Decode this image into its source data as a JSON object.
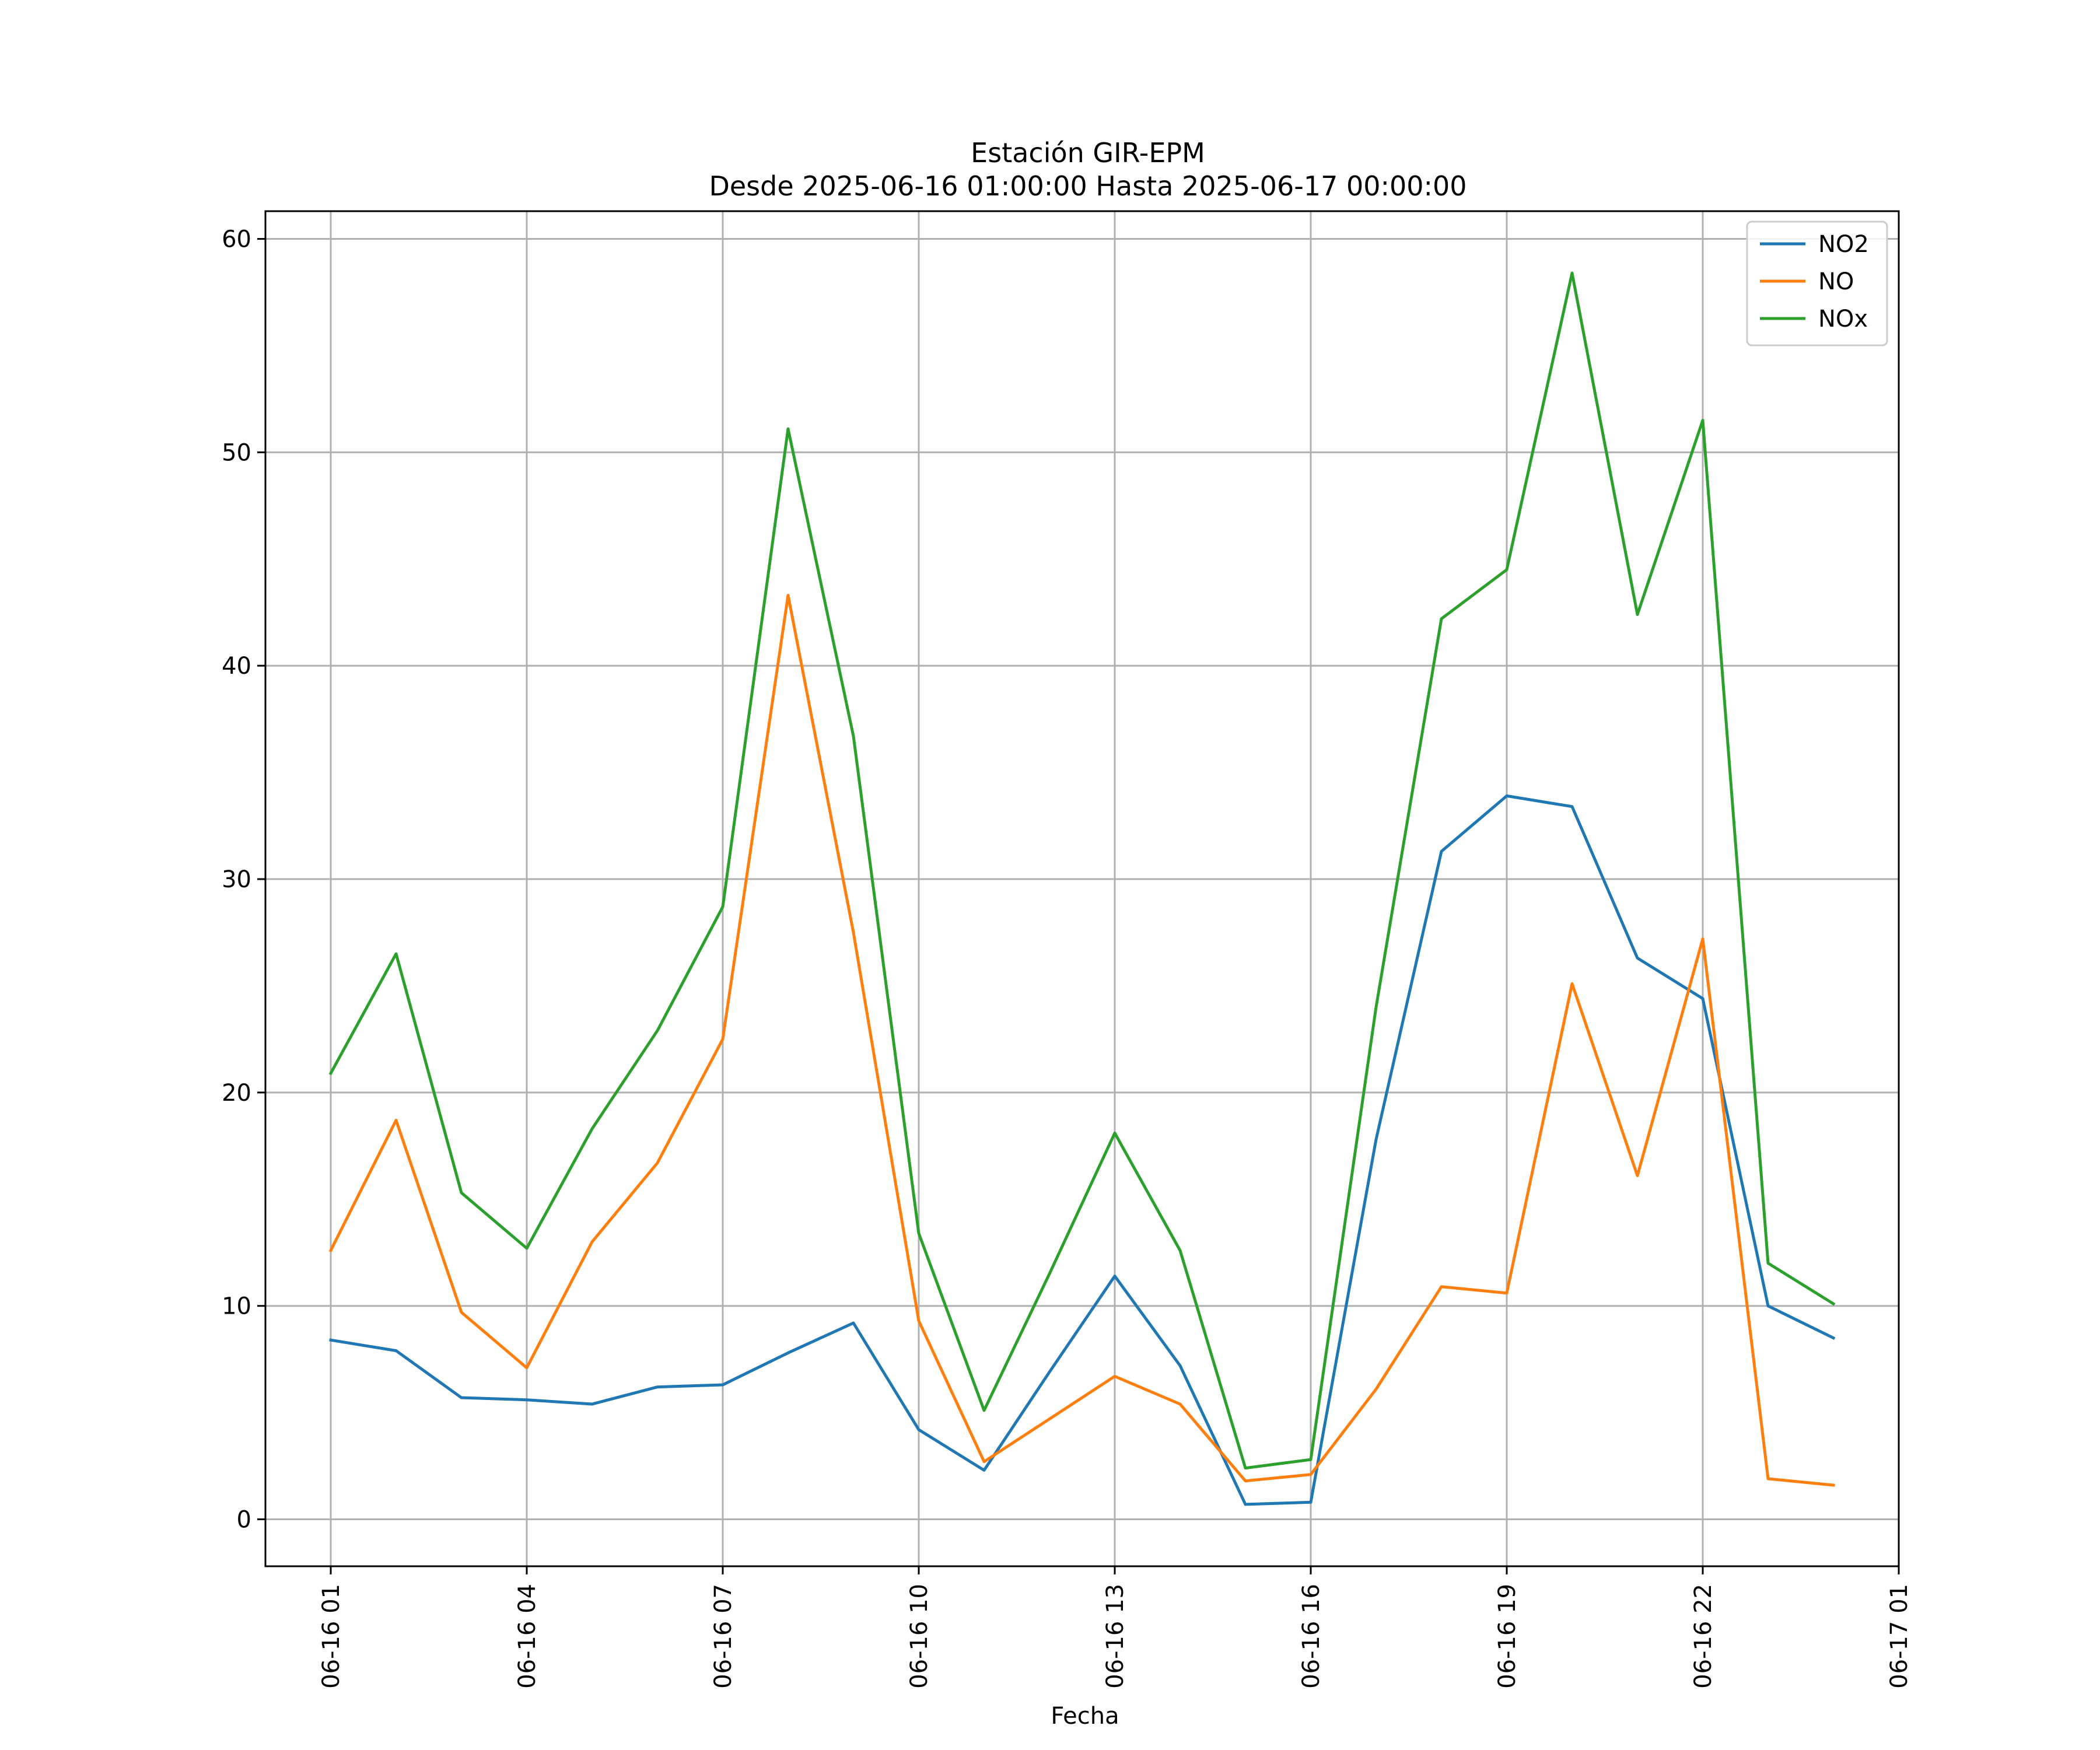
{
  "chart_data": {
    "type": "line",
    "title": "Estación GIR-EPM",
    "subtitle": "Desde 2025-06-16 01:00:00 Hasta 2025-06-17 00:00:00",
    "xlabel": "Fecha",
    "ylabel": "",
    "x": [
      "06-16 01",
      "06-16 02",
      "06-16 03",
      "06-16 04",
      "06-16 05",
      "06-16 06",
      "06-16 07",
      "06-16 08",
      "06-16 09",
      "06-16 10",
      "06-16 11",
      "06-16 12",
      "06-16 13",
      "06-16 14",
      "06-16 15",
      "06-16 16",
      "06-16 17",
      "06-16 18",
      "06-16 19",
      "06-16 20",
      "06-16 21",
      "06-16 22",
      "06-16 23",
      "06-17 00"
    ],
    "x_ticks": [
      "06-16 01",
      "06-16 04",
      "06-16 07",
      "06-16 10",
      "06-16 13",
      "06-16 16",
      "06-16 19",
      "06-16 22",
      "06-17 01"
    ],
    "xlim": [
      "06-16 00",
      "06-17 01"
    ],
    "ylim": [
      -2.2,
      61.3
    ],
    "y_ticks": [
      0,
      10,
      20,
      30,
      40,
      50,
      60
    ],
    "grid": true,
    "legend_position": "top-right",
    "series": [
      {
        "name": "NO2",
        "color": "#1f77b4",
        "values": [
          8.4,
          7.9,
          5.7,
          5.6,
          5.4,
          6.2,
          6.3,
          7.8,
          9.2,
          4.2,
          2.3,
          6.9,
          11.4,
          7.2,
          0.7,
          0.8,
          17.8,
          31.3,
          33.9,
          33.4,
          26.3,
          24.4,
          10.0,
          8.5
        ]
      },
      {
        "name": "NO",
        "color": "#ff7f0e",
        "values": [
          12.6,
          18.7,
          9.7,
          7.1,
          13.0,
          16.7,
          22.5,
          43.3,
          27.5,
          9.3,
          2.7,
          4.7,
          6.7,
          5.4,
          1.8,
          2.1,
          6.1,
          10.9,
          10.6,
          25.1,
          16.1,
          27.2,
          1.9,
          1.6
        ]
      },
      {
        "name": "NOx",
        "color": "#2ca02c",
        "values": [
          20.9,
          26.5,
          15.3,
          12.7,
          18.3,
          22.9,
          28.7,
          51.1,
          36.7,
          13.4,
          5.1,
          11.5,
          18.1,
          12.6,
          2.4,
          2.8,
          24.0,
          42.2,
          44.5,
          58.4,
          42.4,
          51.5,
          12.0,
          10.1
        ]
      }
    ]
  }
}
